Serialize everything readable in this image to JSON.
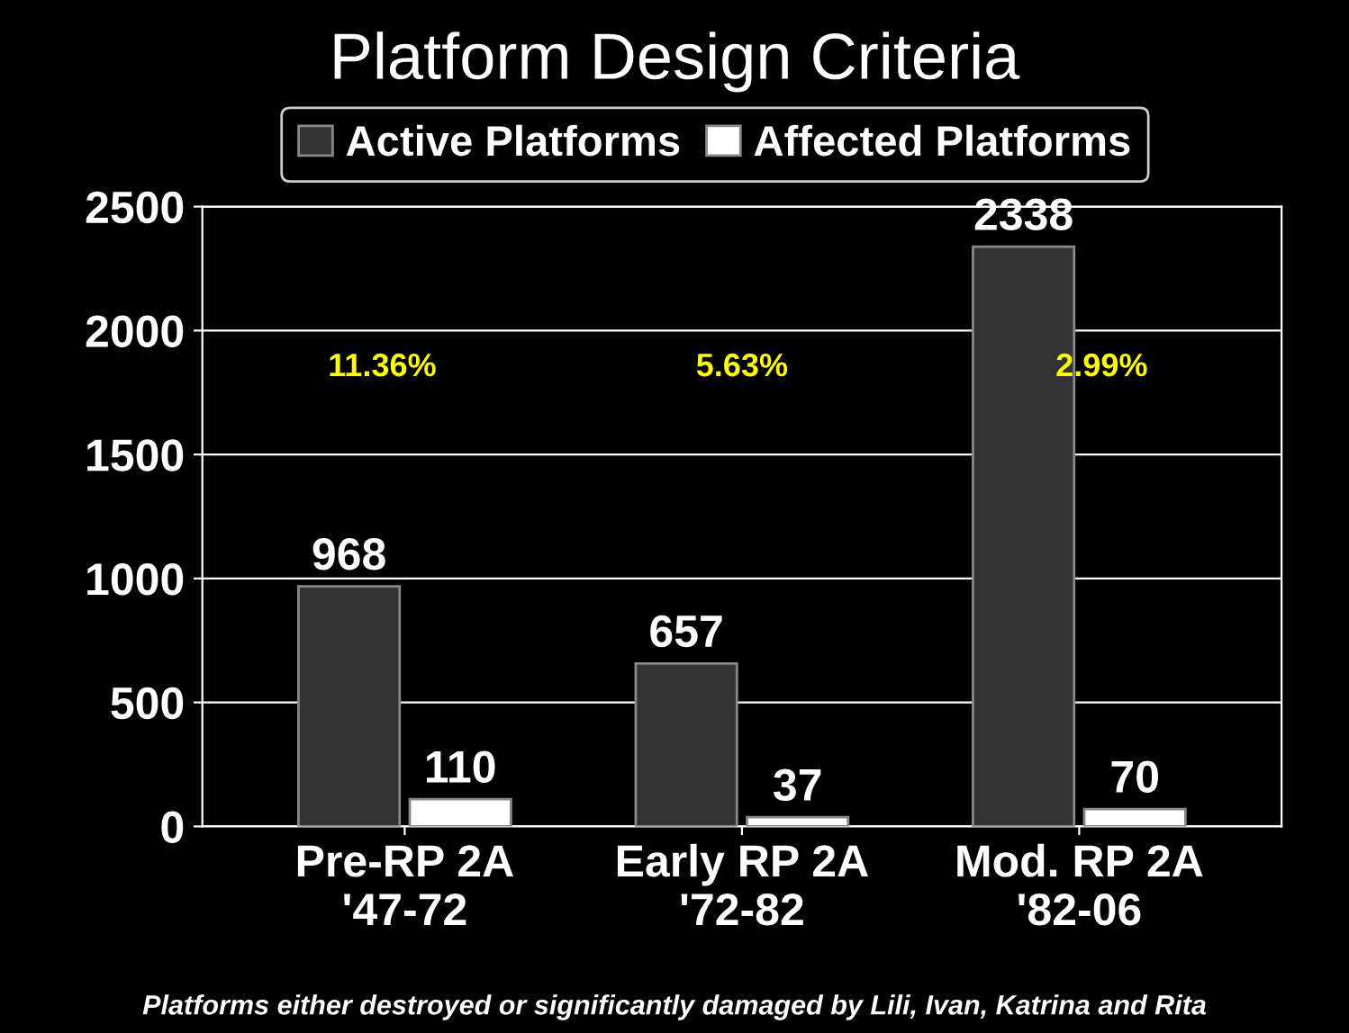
{
  "chart_data": {
    "type": "bar",
    "title": "Platform Design Criteria",
    "categories": [
      "Pre-RP 2A\n'47-72",
      "Early RP 2A\n'72-82",
      "Mod. RP 2A\n'82-06"
    ],
    "series": [
      {
        "name": "Active Platforms",
        "color": "#333333",
        "values": [
          968,
          657,
          2338
        ]
      },
      {
        "name": "Affected Platforms",
        "color": "#ffffff",
        "values": [
          110,
          37,
          70
        ]
      }
    ],
    "ylim": [
      0,
      2500
    ],
    "yticks": [
      0,
      500,
      1000,
      1500,
      2000,
      2500
    ],
    "grid": "y",
    "legend": "top",
    "data_labels": true,
    "annotations": [
      "11.36%",
      "5.63%",
      "2.99%",
      "Platforms either destroyed or significantly damaged by Lili, Ivan, Katrina and Rita"
    ]
  }
}
